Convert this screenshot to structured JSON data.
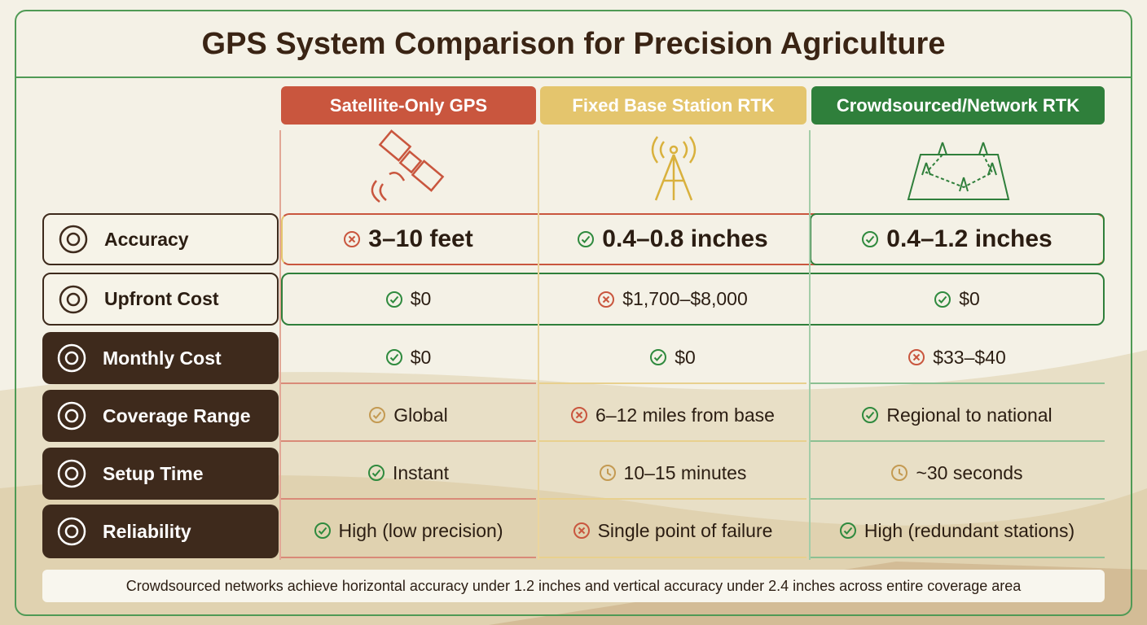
{
  "title": "GPS System Comparison for Precision Agriculture",
  "columns": [
    "Satellite-Only GPS",
    "Fixed Base Station RTK",
    "Crowdsourced/Network RTK"
  ],
  "rows": [
    {
      "label": "Accuracy",
      "cells": [
        "3–10 feet",
        "0.4–0.8 inches",
        "0.4–1.2 inches"
      ]
    },
    {
      "label": "Upfront Cost",
      "cells": [
        "$0",
        "$1,700–$8,000",
        "$0"
      ]
    },
    {
      "label": "Monthly Cost",
      "cells": [
        "$0",
        "$0",
        "$33–$40"
      ]
    },
    {
      "label": "Coverage Range",
      "cells": [
        "Global",
        "6–12 miles from base",
        "Regional to national"
      ]
    },
    {
      "label": "Setup Time",
      "cells": [
        "Instant",
        "10–15 minutes",
        "~30 seconds"
      ]
    },
    {
      "label": "Reliability",
      "cells": [
        "High (low precision)",
        "Single point of failure",
        "High (redundant stations)"
      ]
    }
  ],
  "footnote": "Crowdsourced networks achieve horizontal accuracy under 1.2 inches and vertical accuracy under 2.4 inches across entire coverage area"
}
